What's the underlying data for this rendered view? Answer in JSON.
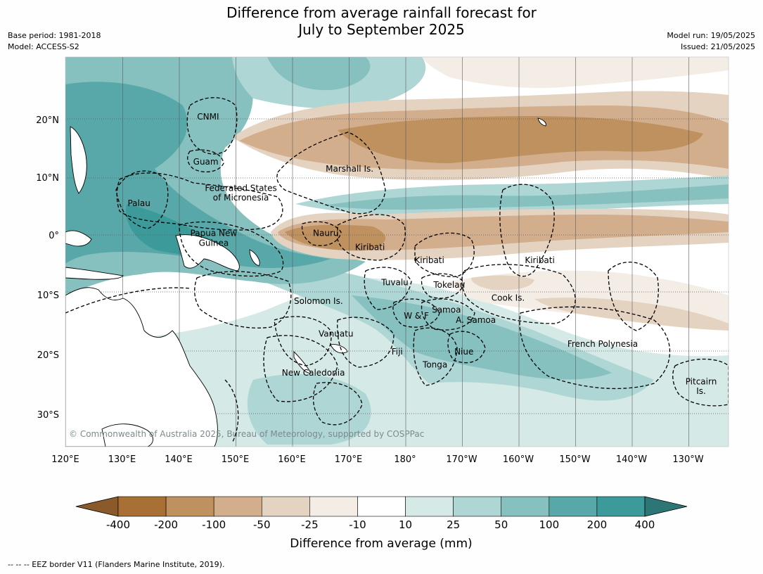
{
  "title_line1": "Difference from average rainfall forecast for",
  "title_line2": "July to September 2025",
  "meta_left": [
    "Base period: 1981-2018",
    "Model: ACCESS-S2"
  ],
  "meta_right": [
    "Model run: 19/05/2025",
    "Issued: 21/05/2025"
  ],
  "lat_labels": [
    {
      "text": "20°N",
      "lat": 20
    },
    {
      "text": "10°N",
      "lat": 10
    },
    {
      "text": "0°",
      "lat": 0
    },
    {
      "text": "10°S",
      "lat": -10
    },
    {
      "text": "20°S",
      "lat": -20
    },
    {
      "text": "30°S",
      "lat": -30
    }
  ],
  "lon_labels": [
    {
      "text": "120°E",
      "lon": 120
    },
    {
      "text": "130°E",
      "lon": 130
    },
    {
      "text": "140°E",
      "lon": 140
    },
    {
      "text": "150°E",
      "lon": 150
    },
    {
      "text": "160°E",
      "lon": 160
    },
    {
      "text": "170°E",
      "lon": 170
    },
    {
      "text": "180°",
      "lon": 180
    },
    {
      "text": "170°W",
      "lon": 190
    },
    {
      "text": "160°W",
      "lon": 200
    },
    {
      "text": "150°W",
      "lon": 210
    },
    {
      "text": "140°W",
      "lon": 220
    },
    {
      "text": "130°W",
      "lon": 230
    }
  ],
  "places": [
    {
      "text": "CNMI",
      "lon": 145.2,
      "lat": 20.0
    },
    {
      "text": "Guam",
      "lon": 144.8,
      "lat": 12.2
    },
    {
      "text": "Marshall Is.",
      "lon": 170.2,
      "lat": 11.0
    },
    {
      "text": "Federated States",
      "lon": 151.0,
      "lat": 7.6
    },
    {
      "text": "of Micronesia",
      "lon": 151.0,
      "lat": 6.0
    },
    {
      "text": "Palau",
      "lon": 133.0,
      "lat": 5.0
    },
    {
      "text": "Papua New",
      "lon": 146.2,
      "lat": -0.2
    },
    {
      "text": "Guinea",
      "lon": 146.2,
      "lat": -1.8
    },
    {
      "text": "Nauru",
      "lon": 166.0,
      "lat": -0.2
    },
    {
      "text": "Kiribati",
      "lon": 173.8,
      "lat": -2.5
    },
    {
      "text": "Kiribati",
      "lon": 184.3,
      "lat": -4.7
    },
    {
      "text": "Kiribati",
      "lon": 203.8,
      "lat": -4.7
    },
    {
      "text": "Tuvalu",
      "lon": 178.2,
      "lat": -8.4
    },
    {
      "text": "Tokelau",
      "lon": 187.8,
      "lat": -8.8
    },
    {
      "text": "Solomon Is.",
      "lon": 164.7,
      "lat": -11.5
    },
    {
      "text": "Cook Is.",
      "lon": 198.2,
      "lat": -11.0
    },
    {
      "text": "Samoa",
      "lon": 187.3,
      "lat": -13.0
    },
    {
      "text": "W & F",
      "lon": 182.0,
      "lat": -14.0
    },
    {
      "text": "A. Samoa",
      "lon": 192.5,
      "lat": -14.7
    },
    {
      "text": "Vanuatu",
      "lon": 167.8,
      "lat": -17.0
    },
    {
      "text": "Fiji",
      "lon": 178.6,
      "lat": -20.0
    },
    {
      "text": "Niue",
      "lon": 190.4,
      "lat": -20.0
    },
    {
      "text": "Tonga",
      "lon": 185.3,
      "lat": -22.2
    },
    {
      "text": "French Polynesia",
      "lon": 214.9,
      "lat": -18.7
    },
    {
      "text": "New Caledonia",
      "lon": 163.8,
      "lat": -23.5
    },
    {
      "text": "Pitcairn",
      "lon": 232.3,
      "lat": -25.0
    },
    {
      "text": "Is.",
      "lon": 232.3,
      "lat": -26.6
    }
  ],
  "copyright": "© Commonwealth of Australia 2025, Bureau of Meteorology, supported by COSPPac",
  "colorbar": {
    "title": "Difference from average (mm)",
    "ticks": [
      "-400",
      "-200",
      "-100",
      "-50",
      "-25",
      "-10",
      "10",
      "25",
      "50",
      "100",
      "200",
      "400"
    ],
    "colors": [
      "#8b5a2b",
      "#a87034",
      "#be915f",
      "#d2ae8c",
      "#e5d3c1",
      "#f3ede6",
      "#ffffff",
      "#d5e9e7",
      "#aed6d4",
      "#86c1c0",
      "#58a8a9",
      "#3d9a9a",
      "#2c7676"
    ]
  },
  "footer": "--  --  -- EEZ border V11 (Flanders Marine Institute, 2019)."
}
